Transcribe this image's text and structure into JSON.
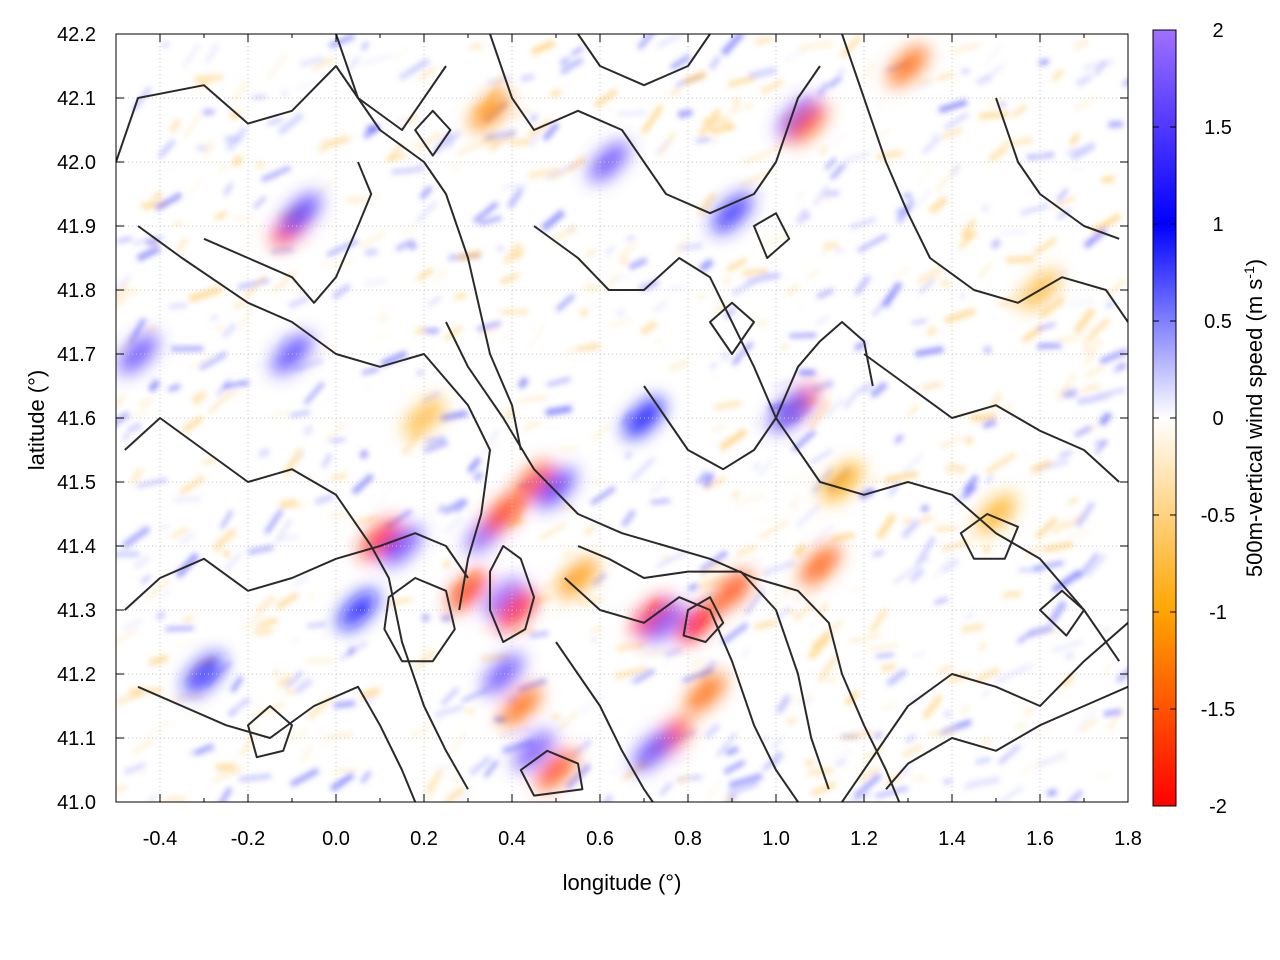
{
  "chart_data": {
    "type": "heatmap",
    "title": "",
    "xlabel": "longitude (°)",
    "ylabel": "latitude (°)",
    "xlim": [
      -0.5,
      1.8
    ],
    "ylim": [
      41.0,
      42.2
    ],
    "x_ticks": [
      -0.4,
      -0.2,
      0.0,
      0.2,
      0.4,
      0.6,
      0.8,
      1.0,
      1.2,
      1.4,
      1.6,
      1.8
    ],
    "x_tick_labels": [
      "-0.4",
      "-0.2",
      "0.0",
      "0.2",
      "0.4",
      "0.6",
      "0.8",
      "1.0",
      "1.2",
      "1.4",
      "1.6",
      "1.8"
    ],
    "y_ticks": [
      41.0,
      41.1,
      41.2,
      41.3,
      41.4,
      41.5,
      41.6,
      41.7,
      41.8,
      41.9,
      42.0,
      42.1,
      42.2
    ],
    "y_tick_labels": [
      "41.0",
      "41.1",
      "41.2",
      "41.3",
      "41.4",
      "41.5",
      "41.6",
      "41.7",
      "41.8",
      "41.9",
      "42.0",
      "42.1",
      "42.2"
    ],
    "grid": true,
    "colorbar": {
      "label_main": "500m-vertical wind speed (m s",
      "label_sup": "-1",
      "label_close": ")",
      "range": [
        -2,
        2
      ],
      "ticks": [
        2,
        1.5,
        1,
        0.5,
        0,
        -0.5,
        -1,
        -1.5,
        -2
      ],
      "tick_labels": [
        "2",
        "1.5",
        "1",
        "0.5",
        "0",
        "-0.5",
        "-1",
        "-1.5",
        "-2"
      ],
      "stops": [
        {
          "v": -2.0,
          "color": "#ff0000"
        },
        {
          "v": -1.0,
          "color": "#ffa500"
        },
        {
          "v": 0.0,
          "color": "#ffffff"
        },
        {
          "v": 1.0,
          "color": "#0000ff"
        },
        {
          "v": 2.0,
          "color": "#a070ff"
        }
      ]
    },
    "hotspots": [
      {
        "x": -0.1,
        "y": 41.9,
        "v": -1.8
      },
      {
        "x": -0.08,
        "y": 41.92,
        "v": 1.5
      },
      {
        "x": -0.45,
        "y": 41.7,
        "v": 1.6
      },
      {
        "x": -0.1,
        "y": 41.7,
        "v": 1.5
      },
      {
        "x": 0.1,
        "y": 41.41,
        "v": -1.8
      },
      {
        "x": 0.15,
        "y": 41.4,
        "v": 1.6
      },
      {
        "x": 0.3,
        "y": 41.33,
        "v": -1.7
      },
      {
        "x": 0.34,
        "y": 41.42,
        "v": 1.8
      },
      {
        "x": 0.38,
        "y": 41.45,
        "v": -1.7
      },
      {
        "x": 0.45,
        "y": 41.5,
        "v": -1.6
      },
      {
        "x": 0.5,
        "y": 41.49,
        "v": 1.5
      },
      {
        "x": 0.38,
        "y": 41.32,
        "v": 1.9
      },
      {
        "x": 0.41,
        "y": 41.3,
        "v": -1.9
      },
      {
        "x": 0.42,
        "y": 41.15,
        "v": -1.4
      },
      {
        "x": 0.38,
        "y": 41.2,
        "v": 1.6
      },
      {
        "x": 0.45,
        "y": 41.08,
        "v": 1.7
      },
      {
        "x": 0.5,
        "y": 41.05,
        "v": -1.6
      },
      {
        "x": 0.72,
        "y": 41.29,
        "v": -2.0
      },
      {
        "x": 0.75,
        "y": 41.28,
        "v": 1.8
      },
      {
        "x": 0.82,
        "y": 41.28,
        "v": -2.0
      },
      {
        "x": 0.9,
        "y": 41.33,
        "v": -1.6
      },
      {
        "x": 0.76,
        "y": 41.1,
        "v": -1.7
      },
      {
        "x": 0.72,
        "y": 41.08,
        "v": 1.6
      },
      {
        "x": 0.84,
        "y": 41.17,
        "v": -1.4
      },
      {
        "x": 1.05,
        "y": 41.62,
        "v": -1.7
      },
      {
        "x": 1.03,
        "y": 41.61,
        "v": 1.5
      },
      {
        "x": 1.05,
        "y": 42.07,
        "v": 1.6
      },
      {
        "x": 1.07,
        "y": 42.06,
        "v": -1.5
      },
      {
        "x": 0.62,
        "y": 42.0,
        "v": 1.6
      },
      {
        "x": 0.35,
        "y": 42.08,
        "v": -1.2
      },
      {
        "x": 0.9,
        "y": 41.92,
        "v": 1.3
      },
      {
        "x": 1.1,
        "y": 41.37,
        "v": -1.5
      },
      {
        "x": 1.3,
        "y": 42.15,
        "v": -1.4
      },
      {
        "x": 1.15,
        "y": 41.5,
        "v": -1.0
      },
      {
        "x": 1.5,
        "y": 41.45,
        "v": -0.9
      },
      {
        "x": -0.3,
        "y": 41.2,
        "v": 1.2
      },
      {
        "x": 0.05,
        "y": 41.3,
        "v": 1.1
      },
      {
        "x": 0.55,
        "y": 41.35,
        "v": -1.1
      },
      {
        "x": 0.2,
        "y": 41.6,
        "v": -0.8
      },
      {
        "x": 0.7,
        "y": 41.6,
        "v": 1.0
      },
      {
        "x": 1.6,
        "y": 41.8,
        "v": -0.8
      }
    ],
    "contours": [
      [
        [
          -0.5,
          42.0
        ],
        [
          -0.45,
          42.1
        ],
        [
          -0.3,
          42.12
        ],
        [
          -0.2,
          42.06
        ],
        [
          -0.1,
          42.08
        ],
        [
          0.0,
          42.15
        ],
        [
          0.1,
          42.05
        ],
        [
          0.2,
          42.0
        ],
        [
          0.25,
          41.95
        ],
        [
          0.3,
          41.85
        ],
        [
          0.35,
          41.7
        ],
        [
          0.4,
          41.62
        ],
        [
          0.42,
          41.55
        ]
      ],
      [
        [
          -0.45,
          41.9
        ],
        [
          -0.35,
          41.85
        ],
        [
          -0.2,
          41.78
        ],
        [
          -0.1,
          41.75
        ],
        [
          0.0,
          41.7
        ],
        [
          0.1,
          41.68
        ],
        [
          0.2,
          41.7
        ],
        [
          0.3,
          41.62
        ],
        [
          0.35,
          41.55
        ],
        [
          0.33,
          41.45
        ],
        [
          0.3,
          41.38
        ],
        [
          0.28,
          41.3
        ]
      ],
      [
        [
          -0.48,
          41.55
        ],
        [
          -0.4,
          41.6
        ],
        [
          -0.3,
          41.55
        ],
        [
          -0.2,
          41.5
        ],
        [
          -0.1,
          41.52
        ],
        [
          0.0,
          41.48
        ],
        [
          0.08,
          41.4
        ],
        [
          0.12,
          41.35
        ],
        [
          0.15,
          41.25
        ],
        [
          0.2,
          41.15
        ],
        [
          0.25,
          41.08
        ],
        [
          0.3,
          41.02
        ]
      ],
      [
        [
          -0.48,
          41.3
        ],
        [
          -0.4,
          41.35
        ],
        [
          -0.3,
          41.38
        ],
        [
          -0.2,
          41.33
        ],
        [
          -0.1,
          41.35
        ],
        [
          0.0,
          41.38
        ],
        [
          0.1,
          41.4
        ],
        [
          0.18,
          41.42
        ],
        [
          0.25,
          41.4
        ],
        [
          0.3,
          41.35
        ]
      ],
      [
        [
          -0.45,
          41.18
        ],
        [
          -0.35,
          41.15
        ],
        [
          -0.25,
          41.12
        ],
        [
          -0.15,
          41.1
        ],
        [
          -0.05,
          41.15
        ],
        [
          0.05,
          41.18
        ],
        [
          0.1,
          41.12
        ],
        [
          0.15,
          41.05
        ],
        [
          0.18,
          41.0
        ]
      ],
      [
        [
          0.35,
          42.2
        ],
        [
          0.4,
          42.1
        ],
        [
          0.45,
          42.05
        ],
        [
          0.55,
          42.08
        ],
        [
          0.65,
          42.05
        ],
        [
          0.7,
          42.0
        ],
        [
          0.75,
          41.95
        ],
        [
          0.85,
          41.92
        ],
        [
          0.95,
          41.95
        ],
        [
          1.0,
          42.0
        ],
        [
          1.05,
          42.1
        ],
        [
          1.1,
          42.15
        ]
      ],
      [
        [
          0.45,
          41.9
        ],
        [
          0.55,
          41.85
        ],
        [
          0.62,
          41.8
        ],
        [
          0.7,
          41.8
        ],
        [
          0.78,
          41.85
        ],
        [
          0.85,
          41.82
        ],
        [
          0.9,
          41.75
        ],
        [
          0.95,
          41.68
        ],
        [
          1.0,
          41.6
        ],
        [
          1.05,
          41.55
        ],
        [
          1.1,
          41.5
        ],
        [
          1.2,
          41.48
        ],
        [
          1.3,
          41.5
        ],
        [
          1.4,
          41.48
        ],
        [
          1.5,
          41.42
        ],
        [
          1.6,
          41.38
        ],
        [
          1.7,
          41.3
        ],
        [
          1.78,
          41.22
        ]
      ],
      [
        [
          0.25,
          41.75
        ],
        [
          0.3,
          41.68
        ],
        [
          0.38,
          41.6
        ],
        [
          0.45,
          41.52
        ],
        [
          0.55,
          41.45
        ],
        [
          0.65,
          41.42
        ],
        [
          0.75,
          41.4
        ],
        [
          0.85,
          41.38
        ],
        [
          0.95,
          41.35
        ],
        [
          1.05,
          41.33
        ],
        [
          1.12,
          41.28
        ],
        [
          1.15,
          41.2
        ],
        [
          1.2,
          41.12
        ],
        [
          1.25,
          41.05
        ],
        [
          1.28,
          41.0
        ]
      ],
      [
        [
          0.5,
          41.25
        ],
        [
          0.55,
          41.2
        ],
        [
          0.6,
          41.15
        ],
        [
          0.65,
          41.08
        ],
        [
          0.7,
          41.02
        ],
        [
          0.72,
          41.0
        ]
      ],
      [
        [
          0.52,
          41.35
        ],
        [
          0.6,
          41.3
        ],
        [
          0.7,
          41.28
        ],
        [
          0.78,
          41.32
        ],
        [
          0.85,
          41.3
        ],
        [
          0.9,
          41.22
        ],
        [
          0.95,
          41.12
        ],
        [
          1.0,
          41.05
        ],
        [
          1.05,
          41.0
        ]
      ],
      [
        [
          0.55,
          41.4
        ],
        [
          0.62,
          41.38
        ],
        [
          0.7,
          41.35
        ],
        [
          0.8,
          41.36
        ],
        [
          0.92,
          41.36
        ],
        [
          1.0,
          41.3
        ],
        [
          1.05,
          41.2
        ],
        [
          1.08,
          41.1
        ],
        [
          1.12,
          41.02
        ]
      ],
      [
        [
          1.8,
          41.28
        ],
        [
          1.7,
          41.22
        ],
        [
          1.6,
          41.15
        ],
        [
          1.5,
          41.18
        ],
        [
          1.4,
          41.2
        ],
        [
          1.3,
          41.15
        ],
        [
          1.25,
          41.1
        ],
        [
          1.2,
          41.05
        ],
        [
          1.15,
          41.0
        ]
      ],
      [
        [
          1.8,
          41.18
        ],
        [
          1.7,
          41.15
        ],
        [
          1.6,
          41.12
        ],
        [
          1.5,
          41.08
        ],
        [
          1.4,
          41.1
        ],
        [
          1.3,
          41.06
        ],
        [
          1.25,
          41.02
        ]
      ],
      [
        [
          1.15,
          42.2
        ],
        [
          1.2,
          42.1
        ],
        [
          1.25,
          42.0
        ],
        [
          1.3,
          41.92
        ],
        [
          1.35,
          41.85
        ],
        [
          1.45,
          41.8
        ],
        [
          1.55,
          41.78
        ],
        [
          1.65,
          41.82
        ],
        [
          1.75,
          41.8
        ],
        [
          1.8,
          41.75
        ]
      ],
      [
        [
          1.2,
          41.7
        ],
        [
          1.3,
          41.65
        ],
        [
          1.4,
          41.6
        ],
        [
          1.5,
          41.62
        ],
        [
          1.6,
          41.58
        ],
        [
          1.7,
          41.55
        ],
        [
          1.78,
          41.5
        ]
      ],
      [
        [
          1.5,
          42.1
        ],
        [
          1.55,
          42.0
        ],
        [
          1.6,
          41.95
        ],
        [
          1.7,
          41.9
        ],
        [
          1.78,
          41.88
        ]
      ],
      [
        [
          0.0,
          42.2
        ],
        [
          0.05,
          42.1
        ],
        [
          0.15,
          42.05
        ],
        [
          0.2,
          42.1
        ],
        [
          0.25,
          42.15
        ]
      ],
      [
        [
          0.55,
          42.2
        ],
        [
          0.6,
          42.15
        ],
        [
          0.7,
          42.12
        ],
        [
          0.8,
          42.15
        ],
        [
          0.85,
          42.2
        ]
      ],
      [
        [
          -0.3,
          41.88
        ],
        [
          -0.2,
          41.85
        ],
        [
          -0.1,
          41.82
        ],
        [
          -0.05,
          41.78
        ],
        [
          0.0,
          41.82
        ],
        [
          0.05,
          41.9
        ],
        [
          0.08,
          41.95
        ],
        [
          0.05,
          42.0
        ]
      ],
      [
        [
          0.7,
          41.65
        ],
        [
          0.75,
          41.6
        ],
        [
          0.8,
          41.55
        ],
        [
          0.88,
          41.52
        ],
        [
          0.95,
          41.55
        ],
        [
          1.0,
          41.6
        ],
        [
          1.05,
          41.68
        ],
        [
          1.1,
          41.72
        ],
        [
          1.15,
          41.75
        ],
        [
          1.2,
          41.72
        ],
        [
          1.22,
          41.65
        ]
      ]
    ],
    "closed_contours": [
      [
        [
          0.38,
          41.4
        ],
        [
          0.42,
          41.38
        ],
        [
          0.45,
          41.32
        ],
        [
          0.43,
          41.27
        ],
        [
          0.38,
          41.25
        ],
        [
          0.35,
          41.3
        ],
        [
          0.35,
          41.36
        ]
      ],
      [
        [
          0.12,
          41.32
        ],
        [
          0.18,
          41.35
        ],
        [
          0.25,
          41.33
        ],
        [
          0.27,
          41.27
        ],
        [
          0.22,
          41.22
        ],
        [
          0.15,
          41.22
        ],
        [
          0.11,
          41.27
        ]
      ],
      [
        [
          -0.2,
          41.12
        ],
        [
          -0.15,
          41.15
        ],
        [
          -0.1,
          41.12
        ],
        [
          -0.12,
          41.08
        ],
        [
          -0.18,
          41.07
        ]
      ],
      [
        [
          0.8,
          41.3
        ],
        [
          0.85,
          41.32
        ],
        [
          0.88,
          41.28
        ],
        [
          0.84,
          41.25
        ],
        [
          0.79,
          41.26
        ]
      ],
      [
        [
          0.42,
          41.05
        ],
        [
          0.48,
          41.08
        ],
        [
          0.55,
          41.06
        ],
        [
          0.56,
          41.02
        ],
        [
          0.45,
          41.01
        ]
      ],
      [
        [
          1.42,
          41.42
        ],
        [
          1.48,
          41.45
        ],
        [
          1.55,
          41.43
        ],
        [
          1.52,
          41.38
        ],
        [
          1.45,
          41.38
        ]
      ],
      [
        [
          0.18,
          42.05
        ],
        [
          0.22,
          42.08
        ],
        [
          0.26,
          42.05
        ],
        [
          0.22,
          42.01
        ]
      ],
      [
        [
          0.95,
          41.9
        ],
        [
          1.0,
          41.92
        ],
        [
          1.03,
          41.88
        ],
        [
          0.98,
          41.85
        ]
      ],
      [
        [
          1.6,
          41.3
        ],
        [
          1.65,
          41.33
        ],
        [
          1.7,
          41.3
        ],
        [
          1.66,
          41.26
        ]
      ],
      [
        [
          0.85,
          41.75
        ],
        [
          0.9,
          41.78
        ],
        [
          0.95,
          41.75
        ],
        [
          0.9,
          41.7
        ]
      ]
    ]
  }
}
